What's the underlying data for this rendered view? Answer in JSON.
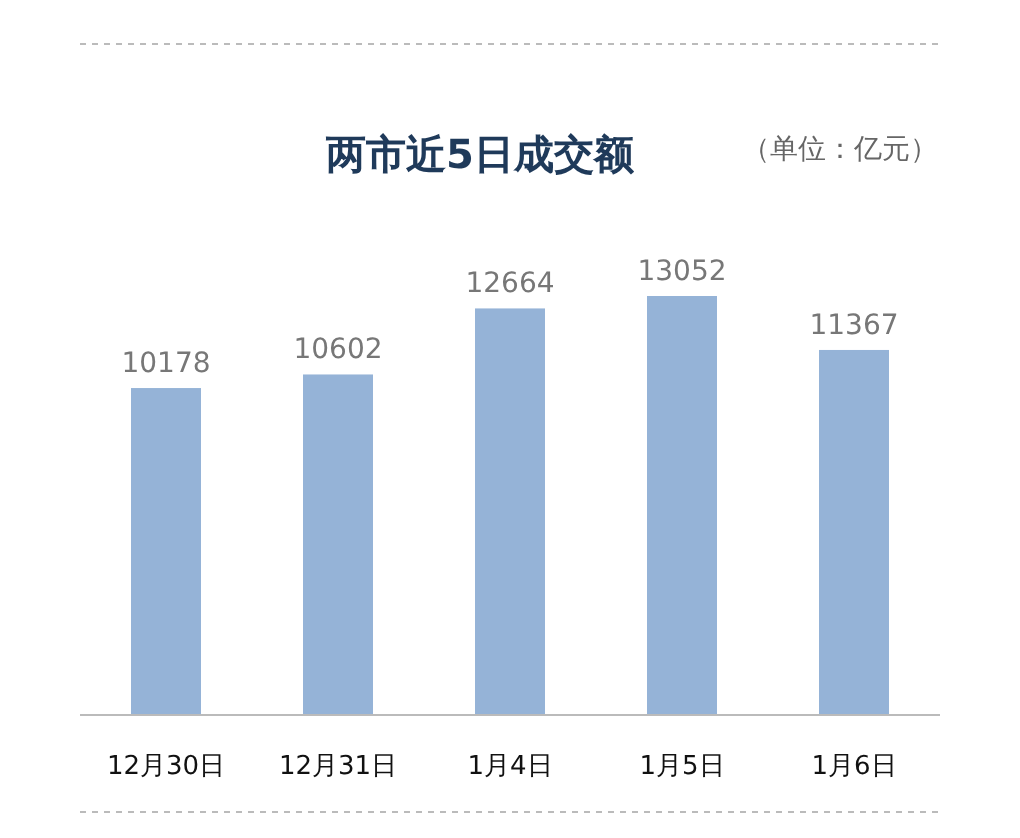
{
  "chart_data": {
    "type": "bar",
    "title": "两市近5日成交额",
    "annotations": [
      "（单位：亿元）"
    ],
    "categories": [
      "12月30日",
      "12月31日",
      "1月4日",
      "1月5日",
      "1月6日"
    ],
    "values": [
      10178,
      10602,
      12664,
      13052,
      11367
    ],
    "color": "#95b3d7",
    "data_labels": true
  }
}
